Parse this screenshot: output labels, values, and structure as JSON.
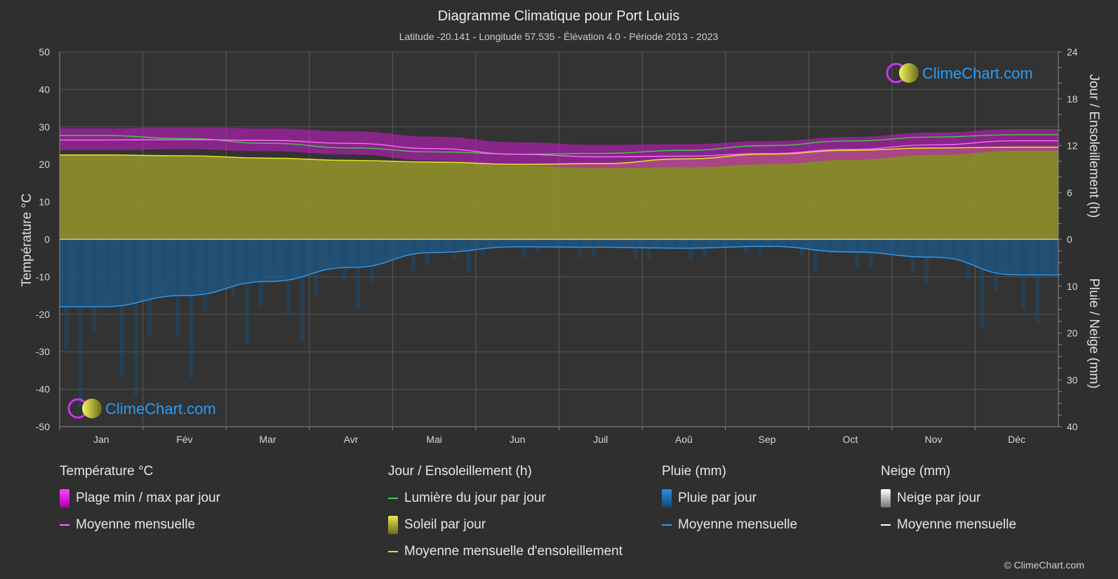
{
  "chart_data": {
    "type": "area",
    "title": "Diagramme Climatique pour Port Louis",
    "subtitle": "Latitude -20.141 - Longitude 57.535 - Élévation 4.0 - Période 2013 - 2023",
    "categories": [
      "Jan",
      "Fév",
      "Mar",
      "Avr",
      "Mai",
      "Jun",
      "Juil",
      "Aoû",
      "Sep",
      "Oct",
      "Nov",
      "Déc"
    ],
    "axes": {
      "left": {
        "label": "Température °C",
        "ylim": [
          -50,
          50
        ],
        "ticks": [
          "50",
          "40",
          "30",
          "20",
          "10",
          "0",
          "-10",
          "-20",
          "-30",
          "-40",
          "-50"
        ]
      },
      "right_top": {
        "label": "Jour / Ensoleillement (h)",
        "ylim": [
          0,
          24
        ],
        "ticks": [
          "24",
          "18",
          "12",
          "6",
          "0"
        ]
      },
      "right_bottom": {
        "label": "Pluie / Neige (mm)",
        "ylim": [
          0,
          40
        ],
        "ticks": [
          "10",
          "20",
          "30",
          "40"
        ]
      }
    },
    "grid": true,
    "series": [
      {
        "name": "Lumière du jour par jour",
        "axis": "right_top",
        "color": "#44cc44",
        "values": [
          13.3,
          12.9,
          12.3,
          11.7,
          11.2,
          10.9,
          11.0,
          11.4,
          12.0,
          12.6,
          13.1,
          13.4
        ]
      },
      {
        "name": "Moyenne mensuelle d'ensoleillement",
        "axis": "right_top",
        "color": "#e0e020",
        "values": [
          10.8,
          10.7,
          10.4,
          10.1,
          9.9,
          9.6,
          9.7,
          10.3,
          10.9,
          11.4,
          11.7,
          11.8
        ]
      },
      {
        "name": "Moyenne mensuelle",
        "group": "Température °C",
        "axis": "left",
        "color": "#ff66ff",
        "values": [
          26.5,
          26.6,
          26.4,
          25.6,
          24.2,
          22.7,
          22.0,
          22.2,
          22.9,
          24.0,
          25.2,
          26.3
        ]
      },
      {
        "name": "Plage min / max par jour",
        "axis": "left",
        "color": "#e020e0",
        "min": [
          23.8,
          24.0,
          23.5,
          22.6,
          21.0,
          19.6,
          19.0,
          19.2,
          20.0,
          21.2,
          22.5,
          23.6
        ],
        "max": [
          29.6,
          29.8,
          29.6,
          28.8,
          27.4,
          25.9,
          25.2,
          25.4,
          26.2,
          27.3,
          28.5,
          29.4
        ]
      },
      {
        "name": "Moyenne mensuelle",
        "group": "Pluie (mm)",
        "axis": "right_bottom",
        "color": "#3399ee",
        "values": [
          14.4,
          12.0,
          9.0,
          6.0,
          2.8,
          1.6,
          1.7,
          1.9,
          1.5,
          2.7,
          3.8,
          7.6
        ]
      }
    ]
  },
  "legend": {
    "temperature": {
      "heading": "Température °C",
      "range": "Plage min / max par jour",
      "mean": "Moyenne mensuelle"
    },
    "sun": {
      "heading": "Jour / Ensoleillement (h)",
      "daylight": "Lumière du jour par jour",
      "sunshine": "Soleil par jour",
      "mean": "Moyenne mensuelle d'ensoleillement"
    },
    "rain": {
      "heading": "Pluie (mm)",
      "daily": "Pluie par jour",
      "mean": "Moyenne mensuelle"
    },
    "snow": {
      "heading": "Neige (mm)",
      "daily": "Neige par jour",
      "mean": "Moyenne mensuelle"
    }
  },
  "logo_text": "ClimeChart.com",
  "copyright": "© ClimeChart.com",
  "colors": {
    "background": "#2f2f2f",
    "grid": "#5a5a5a",
    "daylight": "#44cc44",
    "sunshine_fill": "#8f8f2a",
    "sunshine_line": "#e0e020",
    "temp_range": "#e020e0",
    "temp_mean": "#ff66ff",
    "rain_fill": "#1f5a8a",
    "rain_line": "#3399ee",
    "logo_text": "#2a9df4"
  }
}
